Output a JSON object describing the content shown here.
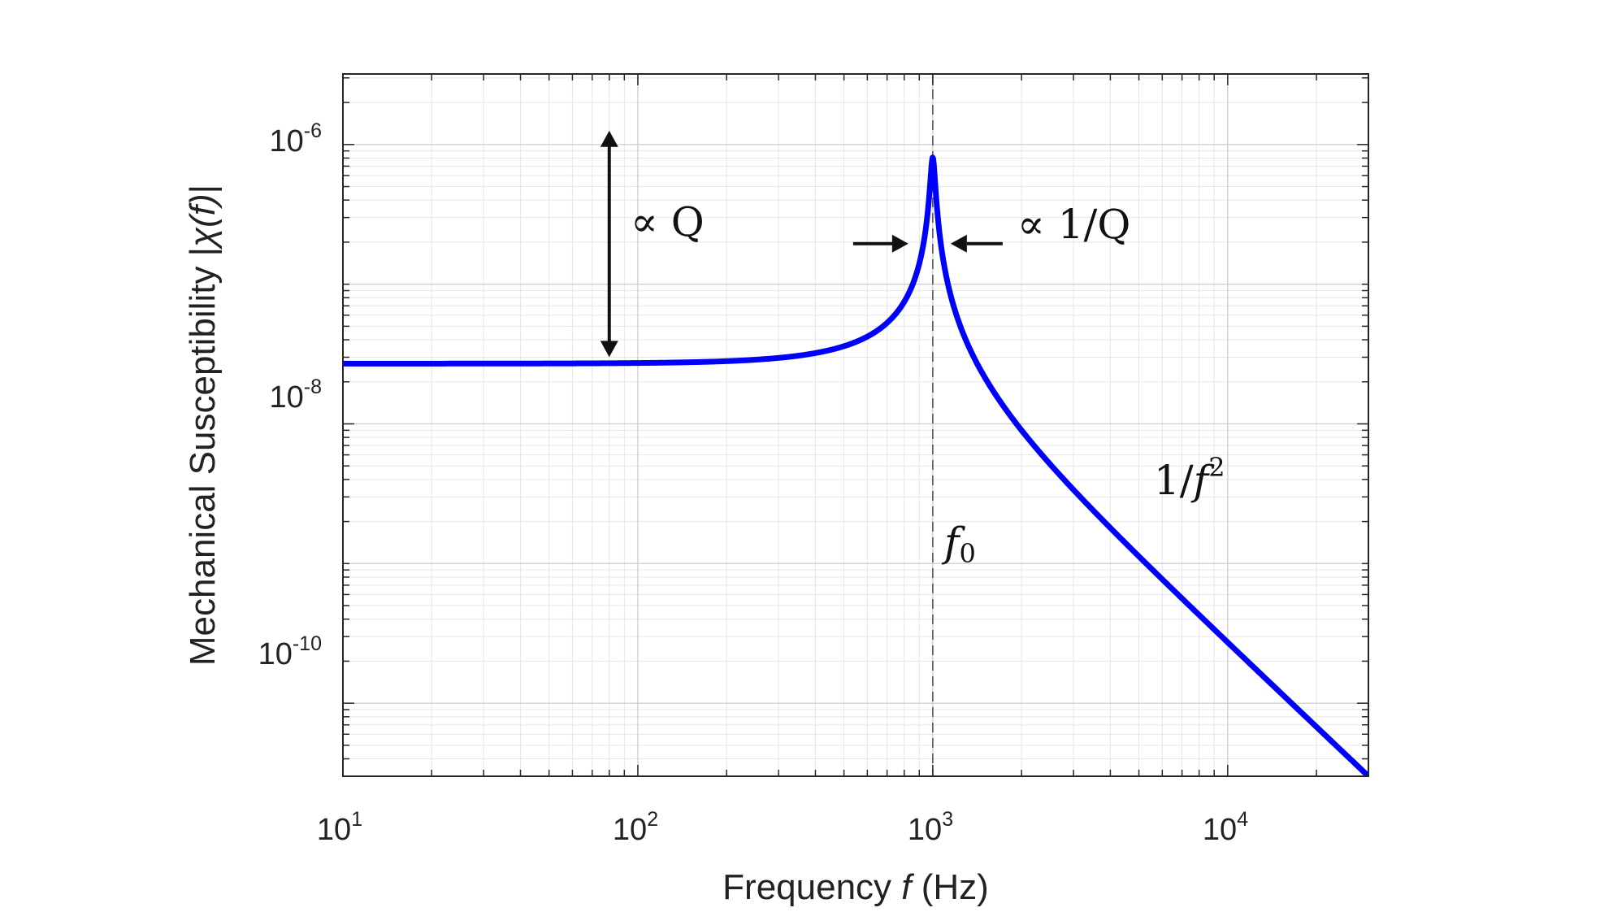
{
  "chart_data": {
    "type": "line",
    "title": "",
    "xlabel": {
      "pre": "Frequency ",
      "var": "f",
      "post": " (Hz)"
    },
    "ylabel": {
      "pre": "Mechanical Susceptibility |",
      "var": "χ(f)",
      "post": "|"
    },
    "x_scale": "log",
    "y_scale": "log",
    "xlim": [
      10,
      30000
    ],
    "ylim": [
      3e-11,
      3.2e-06
    ],
    "grid": true,
    "x_ticks": [
      {
        "base": "10",
        "exp": "1",
        "value": 10
      },
      {
        "base": "10",
        "exp": "2",
        "value": 100
      },
      {
        "base": "10",
        "exp": "3",
        "value": 1000
      },
      {
        "base": "10",
        "exp": "4",
        "value": 10000
      }
    ],
    "y_ticks": [
      {
        "base": "10",
        "exp": "-6",
        "value": 1e-06
      },
      {
        "base": "10",
        "exp": "-8",
        "value": 1e-08
      },
      {
        "base": "10",
        "exp": "-10",
        "value": 1e-10
      }
    ],
    "series": [
      {
        "color": "#0000ff",
        "model": "damped harmonic oscillator",
        "f0": 1000,
        "Q": 30,
        "low_freq_value": 2.7e-08
      }
    ],
    "annotations": {
      "resonance_line_x": 1000,
      "q_arrow_x": 80,
      "q_arrow_y_top": 1.1e-06,
      "q_arrow_y_bottom": 2.7e-08,
      "q_label": "∝ Q",
      "width_arrows_y": 1.95e-07,
      "width_label": "∝ 1/Q",
      "f0_label_base": "f",
      "f0_label_sub": "0",
      "slope_label_pre": "1/",
      "slope_label_var": "f",
      "slope_label_exp": "2"
    }
  }
}
